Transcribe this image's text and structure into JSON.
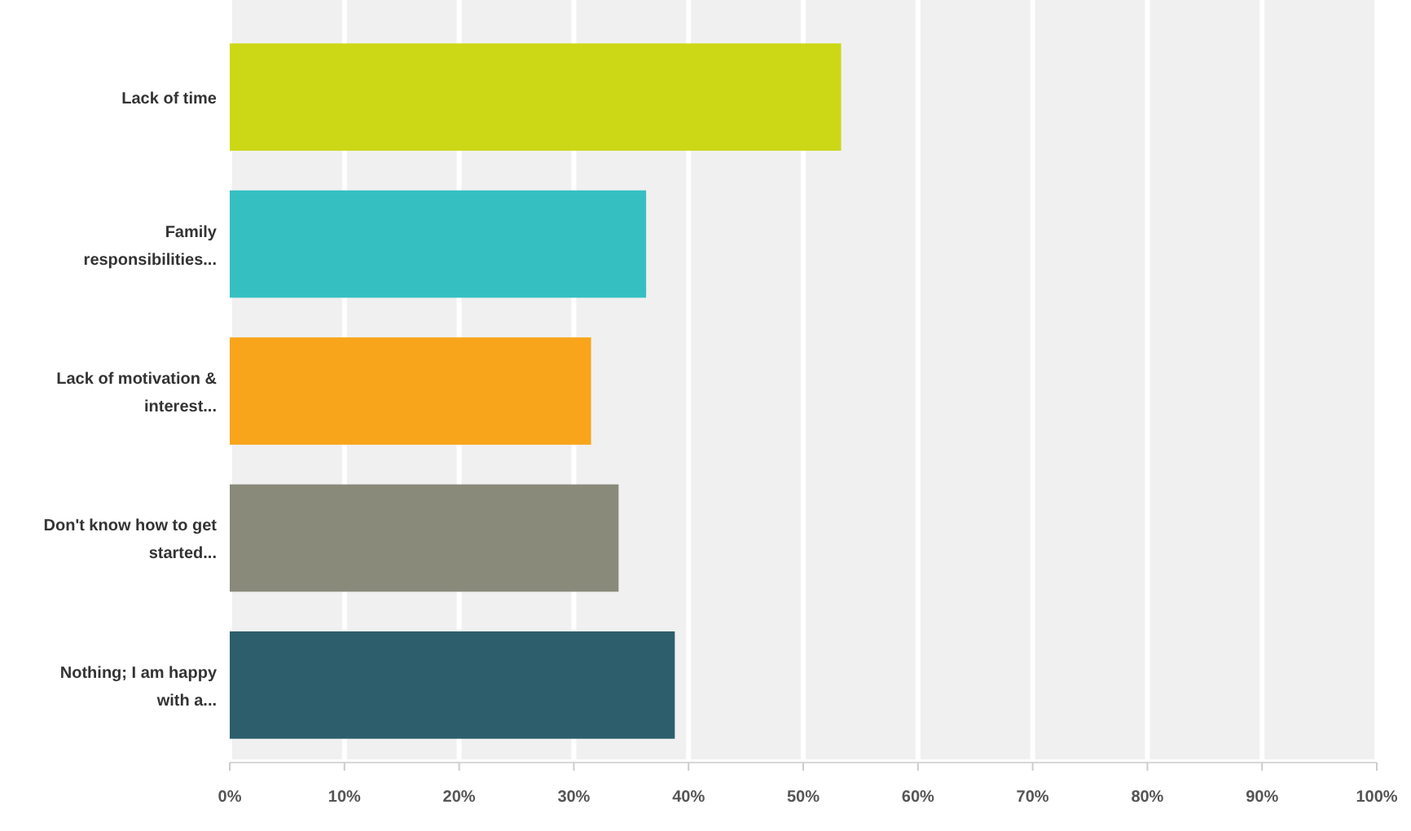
{
  "chart_data": {
    "type": "bar",
    "orientation": "horizontal",
    "categories": [
      "Lack of time",
      "Family responsibilities...",
      "Lack of motivation & interest...",
      "Don't know how to get started...",
      "Nothing; I am happy with a..."
    ],
    "values": [
      53.3,
      36.3,
      31.5,
      33.9,
      38.8
    ],
    "colors": [
      "#ccd816",
      "#35bfc1",
      "#f8a51c",
      "#8a8a7b",
      "#2c5e6c"
    ],
    "xlim": [
      0,
      100
    ],
    "xticks": [
      {
        "value": 0,
        "label": "0%"
      },
      {
        "value": 10,
        "label": "10%"
      },
      {
        "value": 20,
        "label": "20%"
      },
      {
        "value": 30,
        "label": "30%"
      },
      {
        "value": 40,
        "label": "40%"
      },
      {
        "value": 50,
        "label": "50%"
      },
      {
        "value": 60,
        "label": "60%"
      },
      {
        "value": 70,
        "label": "70%"
      },
      {
        "value": 80,
        "label": "80%"
      },
      {
        "value": 90,
        "label": "90%"
      },
      {
        "value": 100,
        "label": "100%"
      }
    ],
    "grid": "x"
  }
}
